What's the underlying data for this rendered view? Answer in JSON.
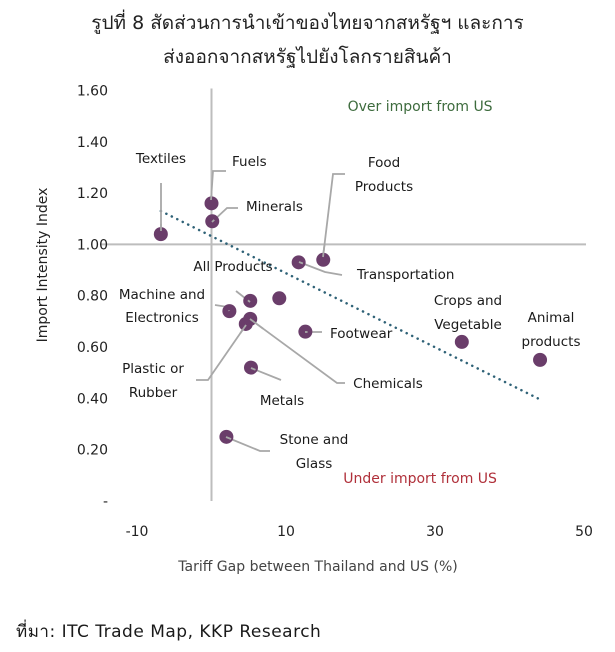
{
  "title_lines": [
    "รูปที่ 8 สัดส่วนการนำเข้าของไทยจากสหรัฐฯ และการ",
    "ส่งออกจากสหรัฐไปยังโลกรายสินค้า"
  ],
  "source": "ที่มา: ITC Trade Map, KKP Research",
  "colors": {
    "point": "#6a3d6a",
    "trend": "#2f6277",
    "axis": "#bdbdbd",
    "leader": "#a8a8a8",
    "over_text": "#3d6b3d",
    "under_text": "#b0303a",
    "text": "#222222",
    "axis_label": "#444444"
  },
  "chart_data": {
    "type": "scatter",
    "title": "รูปที่ 8 สัดส่วนการนำเข้าของไทยจากสหรัฐฯ และการส่งออกจากสหรัฐไปยังโลกรายสินค้า",
    "xlabel": "Tariff Gap between Thailand and US (%)",
    "ylabel": "Import Intensity Index",
    "xlim": [
      -10,
      50
    ],
    "ylim": [
      0,
      1.6
    ],
    "x_ticks": [
      -10,
      10,
      30,
      50
    ],
    "x_tick_labels": [
      "-10",
      "10",
      "30",
      "50"
    ],
    "y_ticks": [
      0,
      0.2,
      0.4,
      0.6,
      0.8,
      1.0,
      1.2,
      1.4,
      1.6
    ],
    "y_tick_labels": [
      "-",
      "0.20",
      "0.40",
      "0.60",
      "0.80",
      "1.00",
      "1.20",
      "1.40",
      "1.60"
    ],
    "grid": false,
    "reference_lines": {
      "x": 0,
      "y": 1.0
    },
    "annotations": [
      {
        "text": "Over import from US",
        "x": 28,
        "y": 1.54,
        "color_key": "over_text"
      },
      {
        "text": "Under import from US",
        "x": 28,
        "y": 0.09,
        "color_key": "under_text"
      }
    ],
    "trendline": {
      "style": "dotted",
      "x": [
        -6.8,
        43.8
      ],
      "y": [
        1.13,
        0.4
      ]
    },
    "points": [
      {
        "name": "Textiles",
        "label_lines": [
          "Textiles"
        ],
        "x": -6.8,
        "y": 1.04
      },
      {
        "name": "Fuels",
        "label_lines": [
          "Fuels"
        ],
        "x": 0.0,
        "y": 1.16
      },
      {
        "name": "Minerals",
        "label_lines": [
          "Minerals"
        ],
        "x": 0.1,
        "y": 1.09
      },
      {
        "name": "Food Products",
        "label_lines": [
          "Food",
          "Products"
        ],
        "x": 15.0,
        "y": 0.94
      },
      {
        "name": "Transportation",
        "label_lines": [
          "Transportation"
        ],
        "x": 11.7,
        "y": 0.93
      },
      {
        "name": "All Products",
        "label_lines": [
          "All Products"
        ],
        "x": 5.2,
        "y": 0.78
      },
      {
        "name": "Unlabeled",
        "label_lines": [],
        "x": 9.1,
        "y": 0.79
      },
      {
        "name": "Machine and Electronics",
        "label_lines": [
          "Machine and",
          "Electronics"
        ],
        "x": 2.4,
        "y": 0.74
      },
      {
        "name": "Chemicals",
        "label_lines": [
          "Chemicals"
        ],
        "x": 5.2,
        "y": 0.71
      },
      {
        "name": "Plastic or Rubber",
        "label_lines": [
          "Plastic or",
          "Rubber"
        ],
        "x": 4.6,
        "y": 0.69
      },
      {
        "name": "Footwear",
        "label_lines": [
          "Footwear"
        ],
        "x": 12.6,
        "y": 0.66
      },
      {
        "name": "Metals",
        "label_lines": [
          "Metals"
        ],
        "x": 5.3,
        "y": 0.52
      },
      {
        "name": "Stone and Glass",
        "label_lines": [
          "Stone and",
          "Glass"
        ],
        "x": 2.0,
        "y": 0.25
      },
      {
        "name": "Crops and Vegetable",
        "label_lines": [
          "Crops and",
          "Vegetable"
        ],
        "x": 33.6,
        "y": 0.62
      },
      {
        "name": "Animal products",
        "label_lines": [
          "Animal",
          "products"
        ],
        "x": 44.1,
        "y": 0.55
      }
    ]
  }
}
